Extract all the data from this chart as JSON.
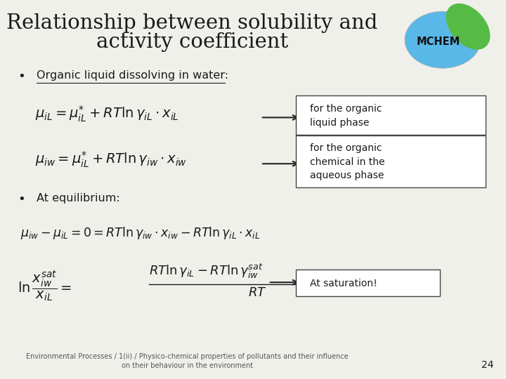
{
  "title_line1": "Relationship between solubility and",
  "title_line2": "activity coefficient",
  "background_color": "#f0f0eb",
  "bullet1": "Organic liquid dissolving in water:",
  "bullet2": "At equilibrium:",
  "box1_text": "for the organic\nliquid phase",
  "box2_text": "for the organic\nchemical in the\naqueous phase",
  "box3_text": "At saturation!",
  "footer": "Environmental Processes / 1(ii) / Physico-chemical properties of pollutants and their influence\non their behaviour in the environment",
  "page_num": "24",
  "box_color": "#ffffff",
  "box_edge_color": "#444444",
  "arrow_color": "#222222",
  "text_color": "#1a1a1a",
  "footer_color": "#555555"
}
